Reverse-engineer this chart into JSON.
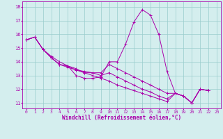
{
  "xlabel": "Windchill (Refroidissement éolien,°C)",
  "background_color": "#d4eeee",
  "line_color": "#aa00aa",
  "grid_color": "#99cccc",
  "xlim": [
    -0.5,
    23.5
  ],
  "ylim": [
    10.6,
    18.4
  ],
  "xticks": [
    0,
    1,
    2,
    3,
    4,
    5,
    6,
    7,
    8,
    9,
    10,
    11,
    12,
    13,
    14,
    15,
    16,
    17,
    18,
    19,
    20,
    21,
    22,
    23
  ],
  "yticks": [
    11,
    12,
    13,
    14,
    15,
    16,
    17,
    18
  ],
  "series": [
    [
      15.6,
      15.8,
      14.9,
      14.3,
      13.8,
      13.7,
      13.0,
      12.8,
      12.8,
      12.9,
      14.0,
      14.0,
      15.3,
      16.9,
      17.8,
      17.4,
      16.0,
      13.3,
      11.7,
      11.5,
      11.0,
      12.0,
      11.9
    ],
    [
      15.6,
      15.8,
      14.9,
      14.3,
      13.8,
      13.7,
      13.5,
      13.2,
      13.2,
      13.2,
      13.8,
      13.5,
      13.2,
      12.9,
      12.6,
      12.3,
      12.0,
      11.7,
      11.7,
      11.5,
      11.0,
      12.0,
      11.9
    ],
    [
      15.6,
      15.8,
      14.9,
      14.3,
      13.8,
      13.6,
      13.4,
      13.3,
      13.2,
      13.0,
      13.2,
      12.9,
      12.6,
      12.3,
      12.0,
      11.8,
      11.5,
      11.3,
      11.7,
      11.5,
      11.0,
      12.0,
      11.9
    ],
    [
      15.6,
      15.8,
      14.9,
      14.4,
      14.0,
      13.7,
      13.4,
      13.2,
      13.0,
      12.8,
      12.6,
      12.3,
      12.1,
      11.9,
      11.7,
      11.5,
      11.3,
      11.1,
      11.7,
      11.5,
      11.0,
      12.0,
      11.9
    ]
  ]
}
